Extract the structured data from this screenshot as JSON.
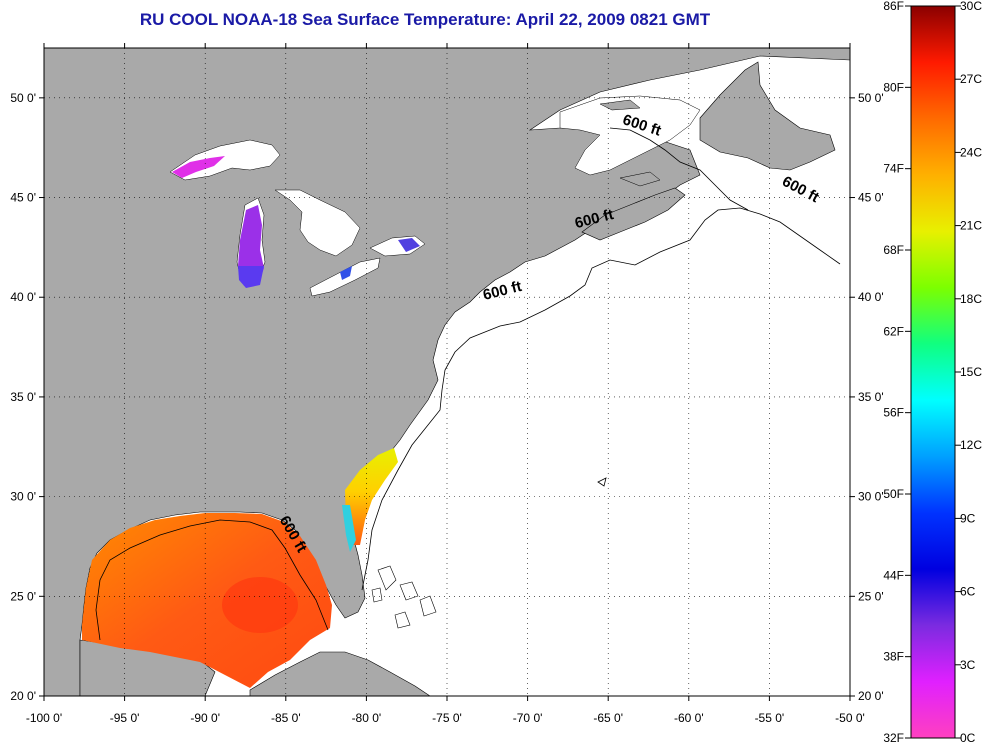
{
  "title": "RU COOL  NOAA-18  Sea Surface Temperature:  April 22, 2009 0821 GMT",
  "map": {
    "lon_range": [
      -100,
      -50
    ],
    "lat_range": [
      20,
      52.5
    ],
    "lon_ticks": [
      -100,
      -95,
      -90,
      -85,
      -80,
      -75,
      -70,
      -65,
      -60,
      -55,
      -50
    ],
    "lon_tick_labels": [
      "-100 0'",
      "-95 0'",
      "-90 0'",
      "-85 0'",
      "-80 0'",
      "-75 0'",
      "-70 0'",
      "-65 0'",
      "-60 0'",
      "-55 0'",
      "-50 0'"
    ],
    "lat_ticks": [
      20,
      25,
      30,
      35,
      40,
      45,
      50
    ],
    "lat_tick_labels": [
      "20 0'",
      "25 0'",
      "30 0'",
      "35 0'",
      "40 0'",
      "45 0'",
      "50 0'"
    ],
    "grid": true,
    "contour_label": "600 ft",
    "colors": {
      "land": "#a9a9a9",
      "ocean": "#ffffff",
      "frame": "#000000"
    }
  },
  "colorbar": {
    "f_labels": [
      "86F",
      "80F",
      "74F",
      "68F",
      "62F",
      "56F",
      "50F",
      "44F",
      "38F",
      "32F"
    ],
    "c_labels": [
      "30C",
      "27C",
      "24C",
      "21C",
      "18C",
      "15C",
      "12C",
      "9C",
      "6C",
      "3C",
      "0C"
    ],
    "f_range": [
      32,
      86
    ],
    "c_range": [
      0,
      30
    ],
    "gradient_stops": [
      "#8b0000",
      "#ff1a00",
      "#ff6a00",
      "#ffb000",
      "#e8f000",
      "#7cff00",
      "#10ff80",
      "#00ffff",
      "#00a0ff",
      "#0033ff",
      "#0000e0",
      "#7b2be0",
      "#e020ff",
      "#ff40c0"
    ]
  },
  "contour_labels": [
    {
      "text": "600 ft",
      "lon": -63,
      "lat": 48.4,
      "rotate": 18
    },
    {
      "text": "600 ft",
      "lon": -53.2,
      "lat": 45.2,
      "rotate": 28
    },
    {
      "text": "600 ft",
      "lon": -65.8,
      "lat": 43.7,
      "rotate": -14
    },
    {
      "text": "600 ft",
      "lon": -71.5,
      "lat": 40.1,
      "rotate": -14
    },
    {
      "text": "600 ft",
      "lon": -84.8,
      "lat": 28.0,
      "rotate": 60
    }
  ]
}
